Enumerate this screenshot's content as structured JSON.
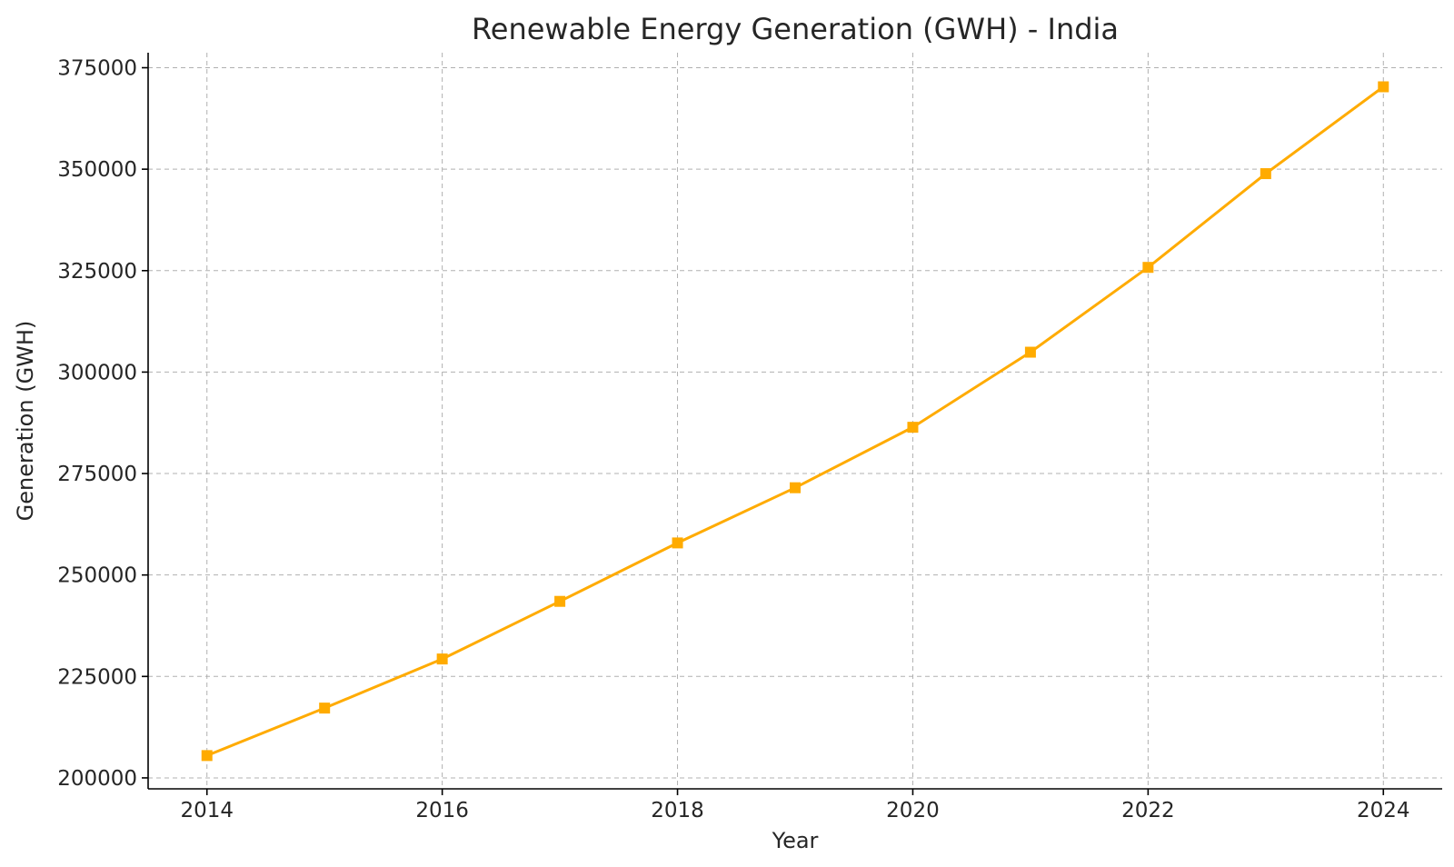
{
  "chart_data": {
    "type": "line",
    "title": "Renewable Energy Generation (GWH) - India",
    "xlabel": "Year",
    "ylabel": "Generation (GWH)",
    "x": [
      2014,
      2015,
      2016,
      2017,
      2018,
      2019,
      2020,
      2021,
      2022,
      2023,
      2024
    ],
    "series": [
      {
        "values": [
          205500,
          217200,
          229300,
          243500,
          257900,
          271500,
          286400,
          304900,
          325800,
          348900,
          370300
        ],
        "color": "#ffab00",
        "marker": "square"
      }
    ],
    "xticks": [
      "2014",
      "2016",
      "2018",
      "2020",
      "2022",
      "2024"
    ],
    "yticks": [
      "200000",
      "225000",
      "250000",
      "275000",
      "300000",
      "325000",
      "350000",
      "375000"
    ],
    "xlim": [
      2013.5,
      2024.5
    ],
    "ylim": [
      197300,
      378700
    ],
    "grid": true
  }
}
